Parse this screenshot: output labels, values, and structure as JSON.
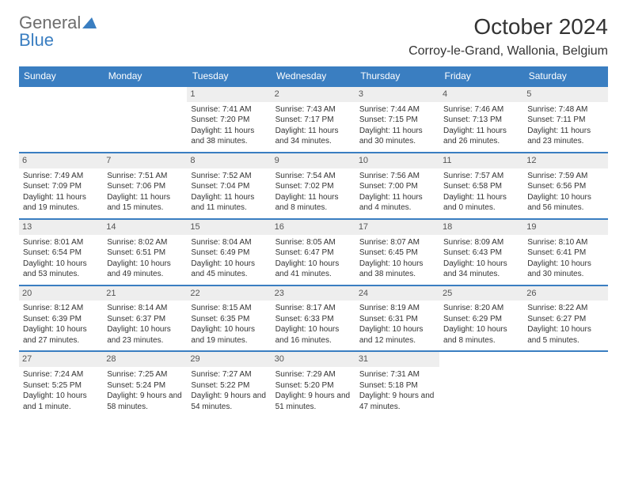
{
  "brand": {
    "part1": "General",
    "part2": "Blue"
  },
  "title": "October 2024",
  "location": "Corroy-le-Grand, Wallonia, Belgium",
  "colors": {
    "accent": "#3a7ec1",
    "header_text": "#ffffff",
    "daynum_bg": "#eeeeee",
    "text": "#333333",
    "logo_gray": "#6d6d6d"
  },
  "daysOfWeek": [
    "Sunday",
    "Monday",
    "Tuesday",
    "Wednesday",
    "Thursday",
    "Friday",
    "Saturday"
  ],
  "weeks": [
    [
      null,
      null,
      {
        "n": "1",
        "sr": "Sunrise: 7:41 AM",
        "ss": "Sunset: 7:20 PM",
        "dl": "Daylight: 11 hours and 38 minutes."
      },
      {
        "n": "2",
        "sr": "Sunrise: 7:43 AM",
        "ss": "Sunset: 7:17 PM",
        "dl": "Daylight: 11 hours and 34 minutes."
      },
      {
        "n": "3",
        "sr": "Sunrise: 7:44 AM",
        "ss": "Sunset: 7:15 PM",
        "dl": "Daylight: 11 hours and 30 minutes."
      },
      {
        "n": "4",
        "sr": "Sunrise: 7:46 AM",
        "ss": "Sunset: 7:13 PM",
        "dl": "Daylight: 11 hours and 26 minutes."
      },
      {
        "n": "5",
        "sr": "Sunrise: 7:48 AM",
        "ss": "Sunset: 7:11 PM",
        "dl": "Daylight: 11 hours and 23 minutes."
      }
    ],
    [
      {
        "n": "6",
        "sr": "Sunrise: 7:49 AM",
        "ss": "Sunset: 7:09 PM",
        "dl": "Daylight: 11 hours and 19 minutes."
      },
      {
        "n": "7",
        "sr": "Sunrise: 7:51 AM",
        "ss": "Sunset: 7:06 PM",
        "dl": "Daylight: 11 hours and 15 minutes."
      },
      {
        "n": "8",
        "sr": "Sunrise: 7:52 AM",
        "ss": "Sunset: 7:04 PM",
        "dl": "Daylight: 11 hours and 11 minutes."
      },
      {
        "n": "9",
        "sr": "Sunrise: 7:54 AM",
        "ss": "Sunset: 7:02 PM",
        "dl": "Daylight: 11 hours and 8 minutes."
      },
      {
        "n": "10",
        "sr": "Sunrise: 7:56 AM",
        "ss": "Sunset: 7:00 PM",
        "dl": "Daylight: 11 hours and 4 minutes."
      },
      {
        "n": "11",
        "sr": "Sunrise: 7:57 AM",
        "ss": "Sunset: 6:58 PM",
        "dl": "Daylight: 11 hours and 0 minutes."
      },
      {
        "n": "12",
        "sr": "Sunrise: 7:59 AM",
        "ss": "Sunset: 6:56 PM",
        "dl": "Daylight: 10 hours and 56 minutes."
      }
    ],
    [
      {
        "n": "13",
        "sr": "Sunrise: 8:01 AM",
        "ss": "Sunset: 6:54 PM",
        "dl": "Daylight: 10 hours and 53 minutes."
      },
      {
        "n": "14",
        "sr": "Sunrise: 8:02 AM",
        "ss": "Sunset: 6:51 PM",
        "dl": "Daylight: 10 hours and 49 minutes."
      },
      {
        "n": "15",
        "sr": "Sunrise: 8:04 AM",
        "ss": "Sunset: 6:49 PM",
        "dl": "Daylight: 10 hours and 45 minutes."
      },
      {
        "n": "16",
        "sr": "Sunrise: 8:05 AM",
        "ss": "Sunset: 6:47 PM",
        "dl": "Daylight: 10 hours and 41 minutes."
      },
      {
        "n": "17",
        "sr": "Sunrise: 8:07 AM",
        "ss": "Sunset: 6:45 PM",
        "dl": "Daylight: 10 hours and 38 minutes."
      },
      {
        "n": "18",
        "sr": "Sunrise: 8:09 AM",
        "ss": "Sunset: 6:43 PM",
        "dl": "Daylight: 10 hours and 34 minutes."
      },
      {
        "n": "19",
        "sr": "Sunrise: 8:10 AM",
        "ss": "Sunset: 6:41 PM",
        "dl": "Daylight: 10 hours and 30 minutes."
      }
    ],
    [
      {
        "n": "20",
        "sr": "Sunrise: 8:12 AM",
        "ss": "Sunset: 6:39 PM",
        "dl": "Daylight: 10 hours and 27 minutes."
      },
      {
        "n": "21",
        "sr": "Sunrise: 8:14 AM",
        "ss": "Sunset: 6:37 PM",
        "dl": "Daylight: 10 hours and 23 minutes."
      },
      {
        "n": "22",
        "sr": "Sunrise: 8:15 AM",
        "ss": "Sunset: 6:35 PM",
        "dl": "Daylight: 10 hours and 19 minutes."
      },
      {
        "n": "23",
        "sr": "Sunrise: 8:17 AM",
        "ss": "Sunset: 6:33 PM",
        "dl": "Daylight: 10 hours and 16 minutes."
      },
      {
        "n": "24",
        "sr": "Sunrise: 8:19 AM",
        "ss": "Sunset: 6:31 PM",
        "dl": "Daylight: 10 hours and 12 minutes."
      },
      {
        "n": "25",
        "sr": "Sunrise: 8:20 AM",
        "ss": "Sunset: 6:29 PM",
        "dl": "Daylight: 10 hours and 8 minutes."
      },
      {
        "n": "26",
        "sr": "Sunrise: 8:22 AM",
        "ss": "Sunset: 6:27 PM",
        "dl": "Daylight: 10 hours and 5 minutes."
      }
    ],
    [
      {
        "n": "27",
        "sr": "Sunrise: 7:24 AM",
        "ss": "Sunset: 5:25 PM",
        "dl": "Daylight: 10 hours and 1 minute."
      },
      {
        "n": "28",
        "sr": "Sunrise: 7:25 AM",
        "ss": "Sunset: 5:24 PM",
        "dl": "Daylight: 9 hours and 58 minutes."
      },
      {
        "n": "29",
        "sr": "Sunrise: 7:27 AM",
        "ss": "Sunset: 5:22 PM",
        "dl": "Daylight: 9 hours and 54 minutes."
      },
      {
        "n": "30",
        "sr": "Sunrise: 7:29 AM",
        "ss": "Sunset: 5:20 PM",
        "dl": "Daylight: 9 hours and 51 minutes."
      },
      {
        "n": "31",
        "sr": "Sunrise: 7:31 AM",
        "ss": "Sunset: 5:18 PM",
        "dl": "Daylight: 9 hours and 47 minutes."
      },
      null,
      null
    ]
  ]
}
